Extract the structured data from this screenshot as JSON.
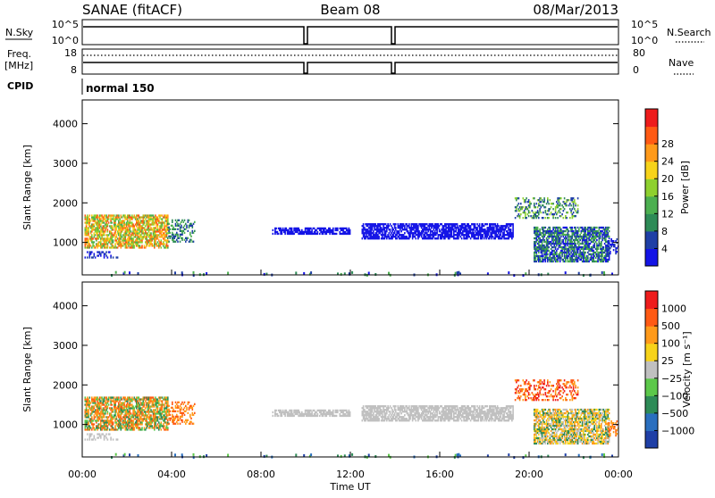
{
  "header": {
    "station": "SANAE (fitACF)",
    "beam": "Beam 08",
    "date": "08/Mar/2013"
  },
  "param_panels": {
    "nsky_label": "N.Sky",
    "nsky_ticks": [
      "10^5",
      "10^0"
    ],
    "nsearch_label": "N.Search",
    "nsearch_ticks": [
      "10^5",
      "10^0"
    ],
    "freq_label": "Freq.",
    "freq_unit": "[MHz]",
    "freq_ticks": [
      "18",
      "8"
    ],
    "nave_label": "Nave",
    "nave_ticks": [
      "80",
      "0"
    ],
    "cpid_label": "CPID",
    "cpid_value": "normal 150"
  },
  "chart_data": [
    {
      "type": "heatmap",
      "name": "power-panel",
      "ylabel": "Slant Range [km]",
      "xlabel": "",
      "ylim": [
        180,
        4600
      ],
      "yticks": [
        1000,
        2000,
        3000,
        4000
      ],
      "xlim": [
        0,
        24
      ],
      "colorbar": {
        "label": "Power [dB]",
        "ticks": [
          "4",
          "8",
          "12",
          "16",
          "20",
          "24",
          "28"
        ],
        "colors": [
          "#1414e6",
          "#1f3fa6",
          "#2e8b57",
          "#4caf50",
          "#8ed02f",
          "#f7d31a",
          "#ff9a1a",
          "#ff5a14",
          "#ee1c1c"
        ]
      },
      "regions": [
        {
          "t": [
            0.1,
            3.8
          ],
          "r": [
            850,
            1700
          ],
          "levels": [
            3,
            4,
            6,
            7,
            5
          ]
        },
        {
          "t": [
            3.8,
            5.0
          ],
          "r": [
            1000,
            1550
          ],
          "levels": [
            1,
            3,
            2
          ]
        },
        {
          "t": [
            0.1,
            1.6
          ],
          "r": [
            600,
            780
          ],
          "levels": [
            0,
            1
          ]
        },
        {
          "t": [
            8.5,
            12.0
          ],
          "r": [
            1200,
            1350
          ],
          "levels": [
            0
          ]
        },
        {
          "t": [
            12.5,
            19.3
          ],
          "r": [
            1080,
            1450
          ],
          "levels": [
            0
          ]
        },
        {
          "t": [
            19.3,
            22.2
          ],
          "r": [
            1600,
            2100
          ],
          "levels": [
            1,
            2,
            4
          ]
        },
        {
          "t": [
            20.2,
            23.6
          ],
          "r": [
            500,
            1400
          ],
          "levels": [
            1,
            3,
            0,
            2
          ]
        },
        {
          "t": [
            23.5,
            24.0
          ],
          "r": [
            700,
            1100
          ],
          "levels": [
            0,
            1
          ]
        }
      ]
    },
    {
      "type": "heatmap",
      "name": "velocity-panel",
      "ylabel": "Slant Range [km]",
      "xlabel": "Time UT",
      "ylim": [
        180,
        4600
      ],
      "yticks": [
        1000,
        2000,
        3000,
        4000
      ],
      "xlim": [
        0,
        24
      ],
      "xticks": [
        "00:00",
        "04:00",
        "08:00",
        "12:00",
        "16:00",
        "20:00",
        "00:00"
      ],
      "colorbar": {
        "label": "Velocity [m s⁻¹]",
        "ticks": [
          "1000",
          "500",
          "100",
          "25",
          "−25",
          "−100",
          "−500",
          "−1000"
        ],
        "colors": [
          "#1f3fa6",
          "#2a6fbf",
          "#2e8b57",
          "#5cc84a",
          "#c0c0c0",
          "#f7d31a",
          "#ff9a1a",
          "#ff5a14",
          "#ee1c1c"
        ]
      },
      "regions": [
        {
          "t": [
            0.1,
            3.8
          ],
          "r": [
            850,
            1700
          ],
          "levels": [
            7,
            6,
            2,
            3,
            6
          ]
        },
        {
          "t": [
            3.8,
            5.0
          ],
          "r": [
            1000,
            1550
          ],
          "levels": [
            6,
            7
          ]
        },
        {
          "t": [
            0.1,
            1.6
          ],
          "r": [
            600,
            780
          ],
          "levels": [
            4
          ]
        },
        {
          "t": [
            8.5,
            12.0
          ],
          "r": [
            1200,
            1350
          ],
          "levels": [
            4
          ]
        },
        {
          "t": [
            12.5,
            19.3
          ],
          "r": [
            1080,
            1450
          ],
          "levels": [
            4
          ]
        },
        {
          "t": [
            19.3,
            22.2
          ],
          "r": [
            1600,
            2100
          ],
          "levels": [
            7,
            8,
            6
          ]
        },
        {
          "t": [
            20.2,
            23.6
          ],
          "r": [
            500,
            1400
          ],
          "levels": [
            2,
            5,
            4,
            6
          ]
        },
        {
          "t": [
            23.5,
            24.0
          ],
          "r": [
            700,
            1100
          ],
          "levels": [
            6,
            7
          ]
        }
      ]
    }
  ]
}
